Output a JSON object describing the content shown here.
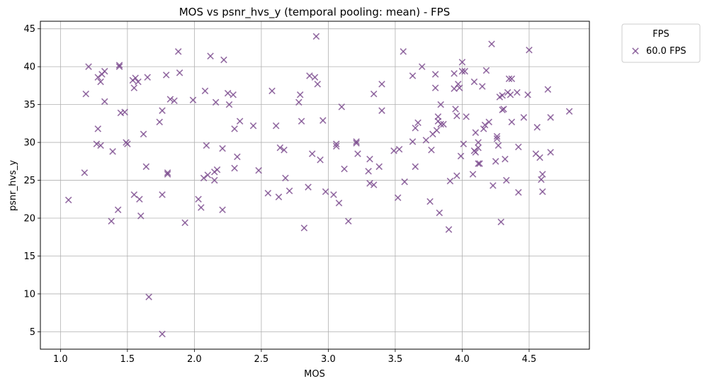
{
  "chart_data": {
    "type": "scatter",
    "title": "MOS vs psnr_hvs_y (temporal pooling: mean) - FPS",
    "xlabel": "MOS",
    "ylabel": "psnr_hvs_y",
    "xlim": [
      0.85,
      4.95
    ],
    "ylim": [
      2.7,
      46
    ],
    "xticks": [
      "1.0",
      "1.5",
      "2.0",
      "2.5",
      "3.0",
      "3.5",
      "4.0",
      "4.5"
    ],
    "yticks": [
      "5",
      "10",
      "15",
      "20",
      "25",
      "30",
      "35",
      "40",
      "45"
    ],
    "grid": true,
    "legend": {
      "title": "FPS",
      "placement": "outside-top-right"
    },
    "series": [
      {
        "name": "60.0 FPS",
        "marker": "x",
        "color": "#7b4a8d",
        "points": [
          [
            1.06,
            22.4
          ],
          [
            1.18,
            26.0
          ],
          [
            1.19,
            36.4
          ],
          [
            1.21,
            40.0
          ],
          [
            1.27,
            29.8
          ],
          [
            1.28,
            31.8
          ],
          [
            1.28,
            38.6
          ],
          [
            1.3,
            38.0
          ],
          [
            1.3,
            29.6
          ],
          [
            1.31,
            39.0
          ],
          [
            1.33,
            39.4
          ],
          [
            1.33,
            35.4
          ],
          [
            1.38,
            19.6
          ],
          [
            1.39,
            28.8
          ],
          [
            1.43,
            21.1
          ],
          [
            1.44,
            40.2
          ],
          [
            1.44,
            40.0
          ],
          [
            1.45,
            33.9
          ],
          [
            1.48,
            34.0
          ],
          [
            1.49,
            30.0
          ],
          [
            1.5,
            29.8
          ],
          [
            1.54,
            38.2
          ],
          [
            1.55,
            37.2
          ],
          [
            1.55,
            23.1
          ],
          [
            1.56,
            38.5
          ],
          [
            1.58,
            38.0
          ],
          [
            1.59,
            22.5
          ],
          [
            1.6,
            20.3
          ],
          [
            1.62,
            31.1
          ],
          [
            1.64,
            26.8
          ],
          [
            1.65,
            38.6
          ],
          [
            1.66,
            9.6
          ],
          [
            1.74,
            32.7
          ],
          [
            1.76,
            4.7
          ],
          [
            1.76,
            23.1
          ],
          [
            1.76,
            34.2
          ],
          [
            1.79,
            38.9
          ],
          [
            1.8,
            26.0
          ],
          [
            1.8,
            25.8
          ],
          [
            1.82,
            35.7
          ],
          [
            1.85,
            35.5
          ],
          [
            1.88,
            42.0
          ],
          [
            1.89,
            39.2
          ],
          [
            1.93,
            19.4
          ],
          [
            1.99,
            35.6
          ],
          [
            2.03,
            22.5
          ],
          [
            2.05,
            21.4
          ],
          [
            2.07,
            25.3
          ],
          [
            2.08,
            36.8
          ],
          [
            2.09,
            29.6
          ],
          [
            2.1,
            25.7
          ],
          [
            2.12,
            41.4
          ],
          [
            2.15,
            26.1
          ],
          [
            2.15,
            25.0
          ],
          [
            2.16,
            35.3
          ],
          [
            2.17,
            26.4
          ],
          [
            2.21,
            21.1
          ],
          [
            2.21,
            29.2
          ],
          [
            2.22,
            40.9
          ],
          [
            2.25,
            36.5
          ],
          [
            2.26,
            35.0
          ],
          [
            2.29,
            36.3
          ],
          [
            2.3,
            26.6
          ],
          [
            2.3,
            31.8
          ],
          [
            2.32,
            28.1
          ],
          [
            2.34,
            32.8
          ],
          [
            2.44,
            32.2
          ],
          [
            2.48,
            26.3
          ],
          [
            2.55,
            23.3
          ],
          [
            2.58,
            36.8
          ],
          [
            2.61,
            32.2
          ],
          [
            2.63,
            22.8
          ],
          [
            2.64,
            29.3
          ],
          [
            2.67,
            29.0
          ],
          [
            2.68,
            25.3
          ],
          [
            2.71,
            23.6
          ],
          [
            2.78,
            35.3
          ],
          [
            2.79,
            36.3
          ],
          [
            2.8,
            32.8
          ],
          [
            2.82,
            18.7
          ],
          [
            2.85,
            24.1
          ],
          [
            2.86,
            38.8
          ],
          [
            2.88,
            28.5
          ],
          [
            2.9,
            38.6
          ],
          [
            2.91,
            44.0
          ],
          [
            2.92,
            37.7
          ],
          [
            2.94,
            27.7
          ],
          [
            2.96,
            32.9
          ],
          [
            2.98,
            23.5
          ],
          [
            3.04,
            23.1
          ],
          [
            3.06,
            29.5
          ],
          [
            3.06,
            29.8
          ],
          [
            3.08,
            22.0
          ],
          [
            3.1,
            34.7
          ],
          [
            3.12,
            26.5
          ],
          [
            3.15,
            19.6
          ],
          [
            3.21,
            30.1
          ],
          [
            3.21,
            29.9
          ],
          [
            3.22,
            28.5
          ],
          [
            3.3,
            26.2
          ],
          [
            3.31,
            24.6
          ],
          [
            3.31,
            27.8
          ],
          [
            3.34,
            24.4
          ],
          [
            3.34,
            36.4
          ],
          [
            3.38,
            26.8
          ],
          [
            3.4,
            37.7
          ],
          [
            3.4,
            34.2
          ],
          [
            3.49,
            28.9
          ],
          [
            3.52,
            22.7
          ],
          [
            3.53,
            29.1
          ],
          [
            3.56,
            42.0
          ],
          [
            3.57,
            24.8
          ],
          [
            3.63,
            30.1
          ],
          [
            3.63,
            38.8
          ],
          [
            3.65,
            31.9
          ],
          [
            3.65,
            26.8
          ],
          [
            3.67,
            32.6
          ],
          [
            3.7,
            40.0
          ],
          [
            3.73,
            30.3
          ],
          [
            3.76,
            22.2
          ],
          [
            3.77,
            29.0
          ],
          [
            3.78,
            31.1
          ],
          [
            3.8,
            37.2
          ],
          [
            3.8,
            39.0
          ],
          [
            3.81,
            31.6
          ],
          [
            3.82,
            33.4
          ],
          [
            3.82,
            32.8
          ],
          [
            3.83,
            20.7
          ],
          [
            3.84,
            35.0
          ],
          [
            3.84,
            32.4
          ],
          [
            3.86,
            32.4
          ],
          [
            3.9,
            18.5
          ],
          [
            3.91,
            24.9
          ],
          [
            3.94,
            39.1
          ],
          [
            3.94,
            37.1
          ],
          [
            3.95,
            34.4
          ],
          [
            3.96,
            25.6
          ],
          [
            3.96,
            33.5
          ],
          [
            3.97,
            37.7
          ],
          [
            3.98,
            37.2
          ],
          [
            3.99,
            28.2
          ],
          [
            4.0,
            39.4
          ],
          [
            4.0,
            40.6
          ],
          [
            4.01,
            29.8
          ],
          [
            4.02,
            39.4
          ],
          [
            4.03,
            33.4
          ],
          [
            4.08,
            25.8
          ],
          [
            4.09,
            38.0
          ],
          [
            4.09,
            28.9
          ],
          [
            4.1,
            31.3
          ],
          [
            4.1,
            28.7
          ],
          [
            4.12,
            29.3
          ],
          [
            4.12,
            30.0
          ],
          [
            4.12,
            27.2
          ],
          [
            4.13,
            27.2
          ],
          [
            4.15,
            37.4
          ],
          [
            4.16,
            31.8
          ],
          [
            4.17,
            32.3
          ],
          [
            4.18,
            39.5
          ],
          [
            4.2,
            32.7
          ],
          [
            4.22,
            43.0
          ],
          [
            4.23,
            24.3
          ],
          [
            4.25,
            27.5
          ],
          [
            4.26,
            30.8
          ],
          [
            4.26,
            30.5
          ],
          [
            4.27,
            29.6
          ],
          [
            4.28,
            36.0
          ],
          [
            4.29,
            19.5
          ],
          [
            4.3,
            36.2
          ],
          [
            4.3,
            34.3
          ],
          [
            4.31,
            34.4
          ],
          [
            4.32,
            27.8
          ],
          [
            4.33,
            25.0
          ],
          [
            4.34,
            36.6
          ],
          [
            4.35,
            38.4
          ],
          [
            4.36,
            36.3
          ],
          [
            4.37,
            38.4
          ],
          [
            4.37,
            32.7
          ],
          [
            4.41,
            36.6
          ],
          [
            4.42,
            23.4
          ],
          [
            4.42,
            29.4
          ],
          [
            4.46,
            33.3
          ],
          [
            4.49,
            36.3
          ],
          [
            4.5,
            42.2
          ],
          [
            4.55,
            28.5
          ],
          [
            4.56,
            32.0
          ],
          [
            4.58,
            28.0
          ],
          [
            4.59,
            25.1
          ],
          [
            4.6,
            25.8
          ],
          [
            4.6,
            23.5
          ],
          [
            4.64,
            37.0
          ],
          [
            4.66,
            28.7
          ],
          [
            4.66,
            33.3
          ],
          [
            4.8,
            34.1
          ]
        ]
      }
    ]
  }
}
